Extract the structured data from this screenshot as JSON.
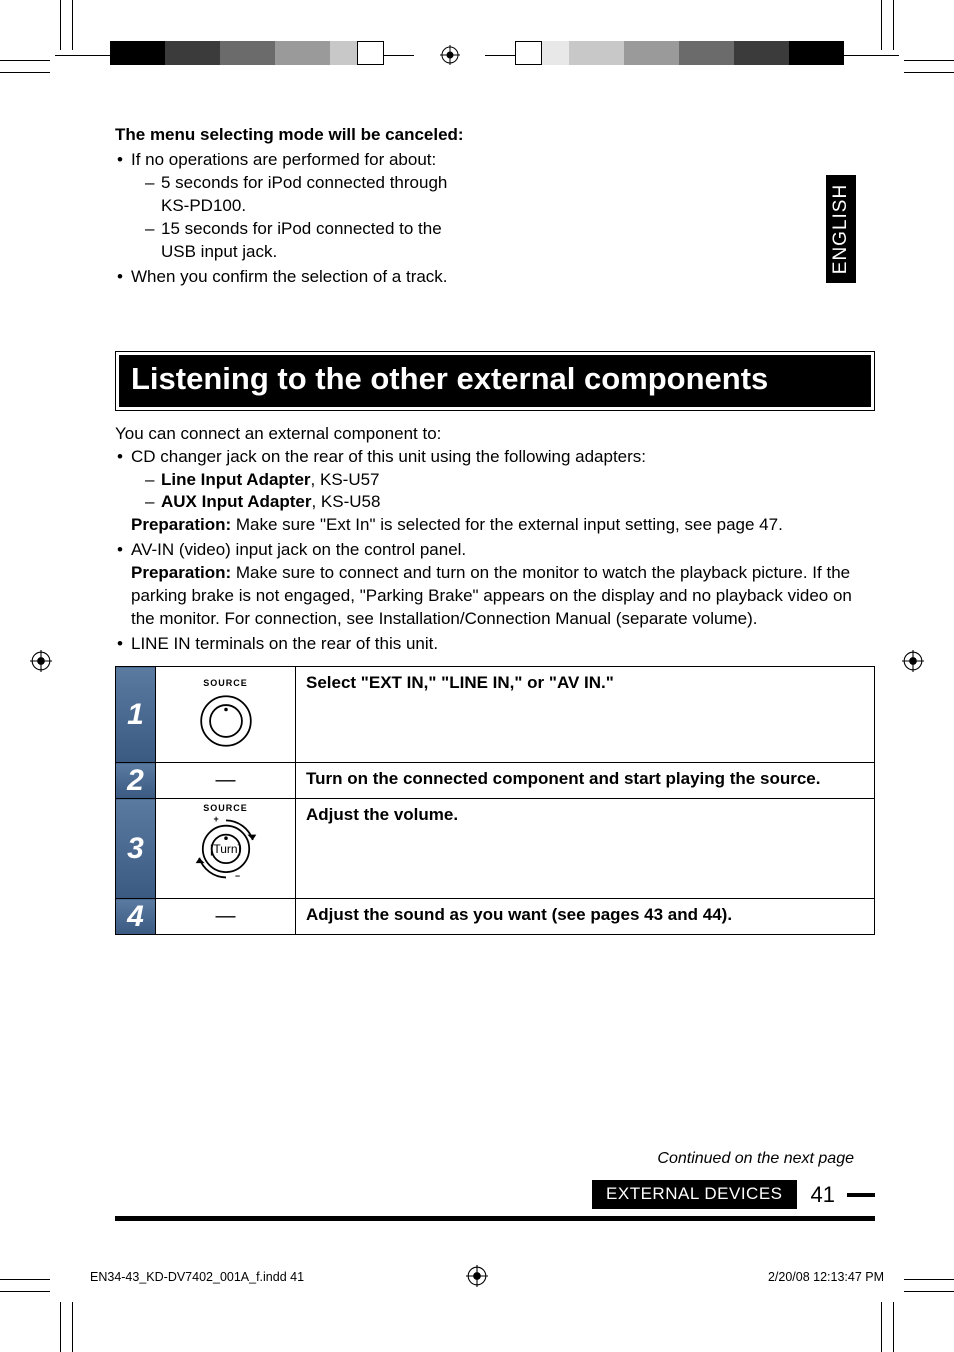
{
  "lang_tab": "ENGLISH",
  "menu_cancel": {
    "heading": "The menu selecting mode will be canceled:",
    "items": [
      {
        "text": "If no operations are performed for about:",
        "sub": [
          "5 seconds for iPod connected through KS-PD100.",
          "15 seconds for iPod connected to the USB input jack."
        ]
      },
      {
        "text": "When you confirm the selection of a track."
      }
    ]
  },
  "band_title": "Listening to the other external components",
  "intro_lead": "You can connect an external component to:",
  "intro_items": [
    {
      "text": "CD changer jack on the rear of this unit using the following adapters:",
      "sub_bold": [
        {
          "label": "Line Input Adapter",
          "tail": ", KS-U57"
        },
        {
          "label": "AUX Input Adapter",
          "tail": ", KS-U58"
        }
      ],
      "prep_label": "Preparation:",
      "prep_text": " Make sure \"Ext In\" is selected for the external input setting, see page 47."
    },
    {
      "text": "AV-IN (video) input jack on the control panel.",
      "prep_label": "Preparation:",
      "prep_text": " Make sure to connect and turn on the monitor to watch the playback picture. If the parking brake is not engaged, \"Parking Brake\" appears on the display and no playback video on the monitor. For connection, see Installation/Connection Manual (separate volume)."
    },
    {
      "text": "LINE IN terminals on the rear of this unit."
    }
  ],
  "steps": [
    {
      "n": "1",
      "ctrl": "dial",
      "ctrl_label": "SOURCE",
      "desc": "Select \"EXT IN,\" \"LINE IN,\" or \"AV IN.\""
    },
    {
      "n": "2",
      "ctrl": "dash",
      "desc": "Turn on the connected component and start playing the source."
    },
    {
      "n": "3",
      "ctrl": "dial-turn",
      "ctrl_label": "SOURCE",
      "turn_label": "[Turn]",
      "desc": "Adjust the volume."
    },
    {
      "n": "4",
      "ctrl": "dash",
      "desc": "Adjust the sound as you want (see pages 43 and 44)."
    }
  ],
  "continued": "Continued on the next page",
  "footer_section": "EXTERNAL DEVICES",
  "page_num": "41",
  "print_file": "EN34-43_KD-DV7402_001A_f.indd   41",
  "print_ts": "2/20/08   12:13:47 PM",
  "reg_colors_left": [
    "#000000",
    "#3b3b3b",
    "#6b6b6b",
    "#9a9a9a"
  ],
  "reg_colors_left_sm": [
    "#c8c8c8",
    "#ffffff"
  ],
  "reg_colors_right": [
    "#c8c8c8",
    "#9a9a9a",
    "#6b6b6b",
    "#3b3b3b",
    "#000000"
  ],
  "reg_colors_right_sm": [
    "#ffffff",
    "#e8e8e8"
  ]
}
